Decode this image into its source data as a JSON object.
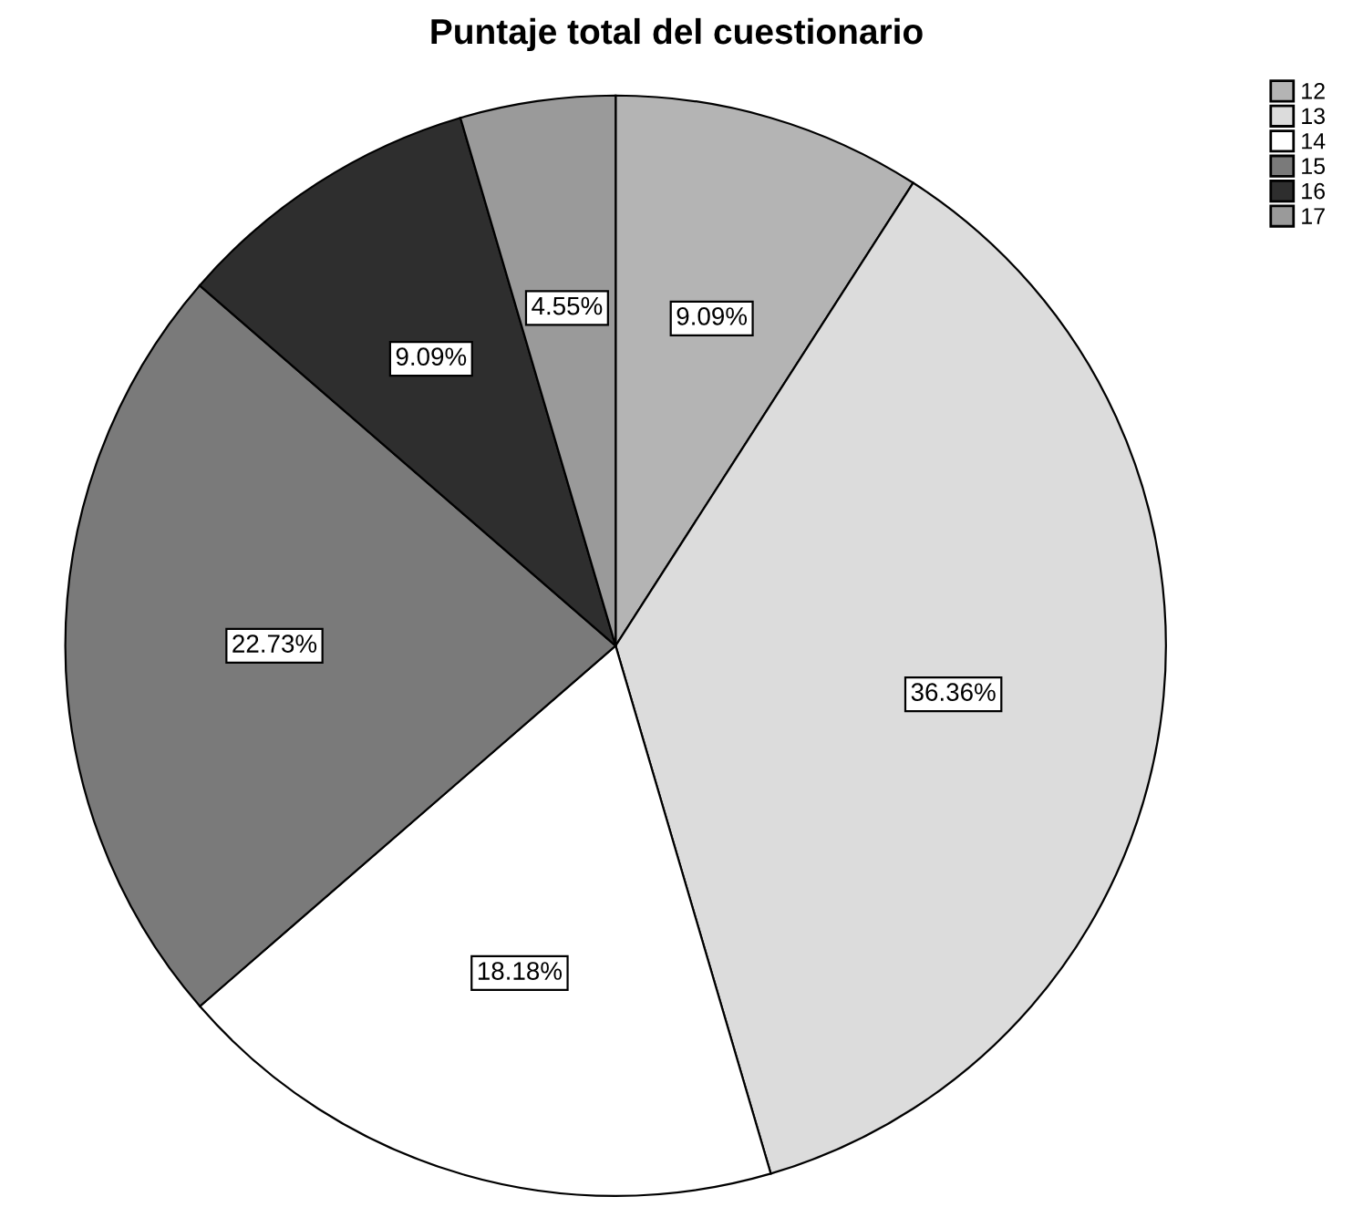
{
  "chart_data": {
    "type": "pie",
    "title": "Puntaje total del cuestionario",
    "categories": [
      "12",
      "13",
      "14",
      "15",
      "16",
      "17"
    ],
    "values": [
      9.09,
      36.36,
      18.18,
      22.73,
      9.09,
      4.55
    ],
    "value_labels": [
      "9.09%",
      "36.36%",
      "18.18%",
      "22.73%",
      "9.09%",
      "4.55%"
    ],
    "colors": [
      "#b4b4b4",
      "#dcdcdc",
      "#ffffff",
      "#7a7a7a",
      "#2e2e2e",
      "#9a9a9a"
    ],
    "legend": "top right"
  }
}
